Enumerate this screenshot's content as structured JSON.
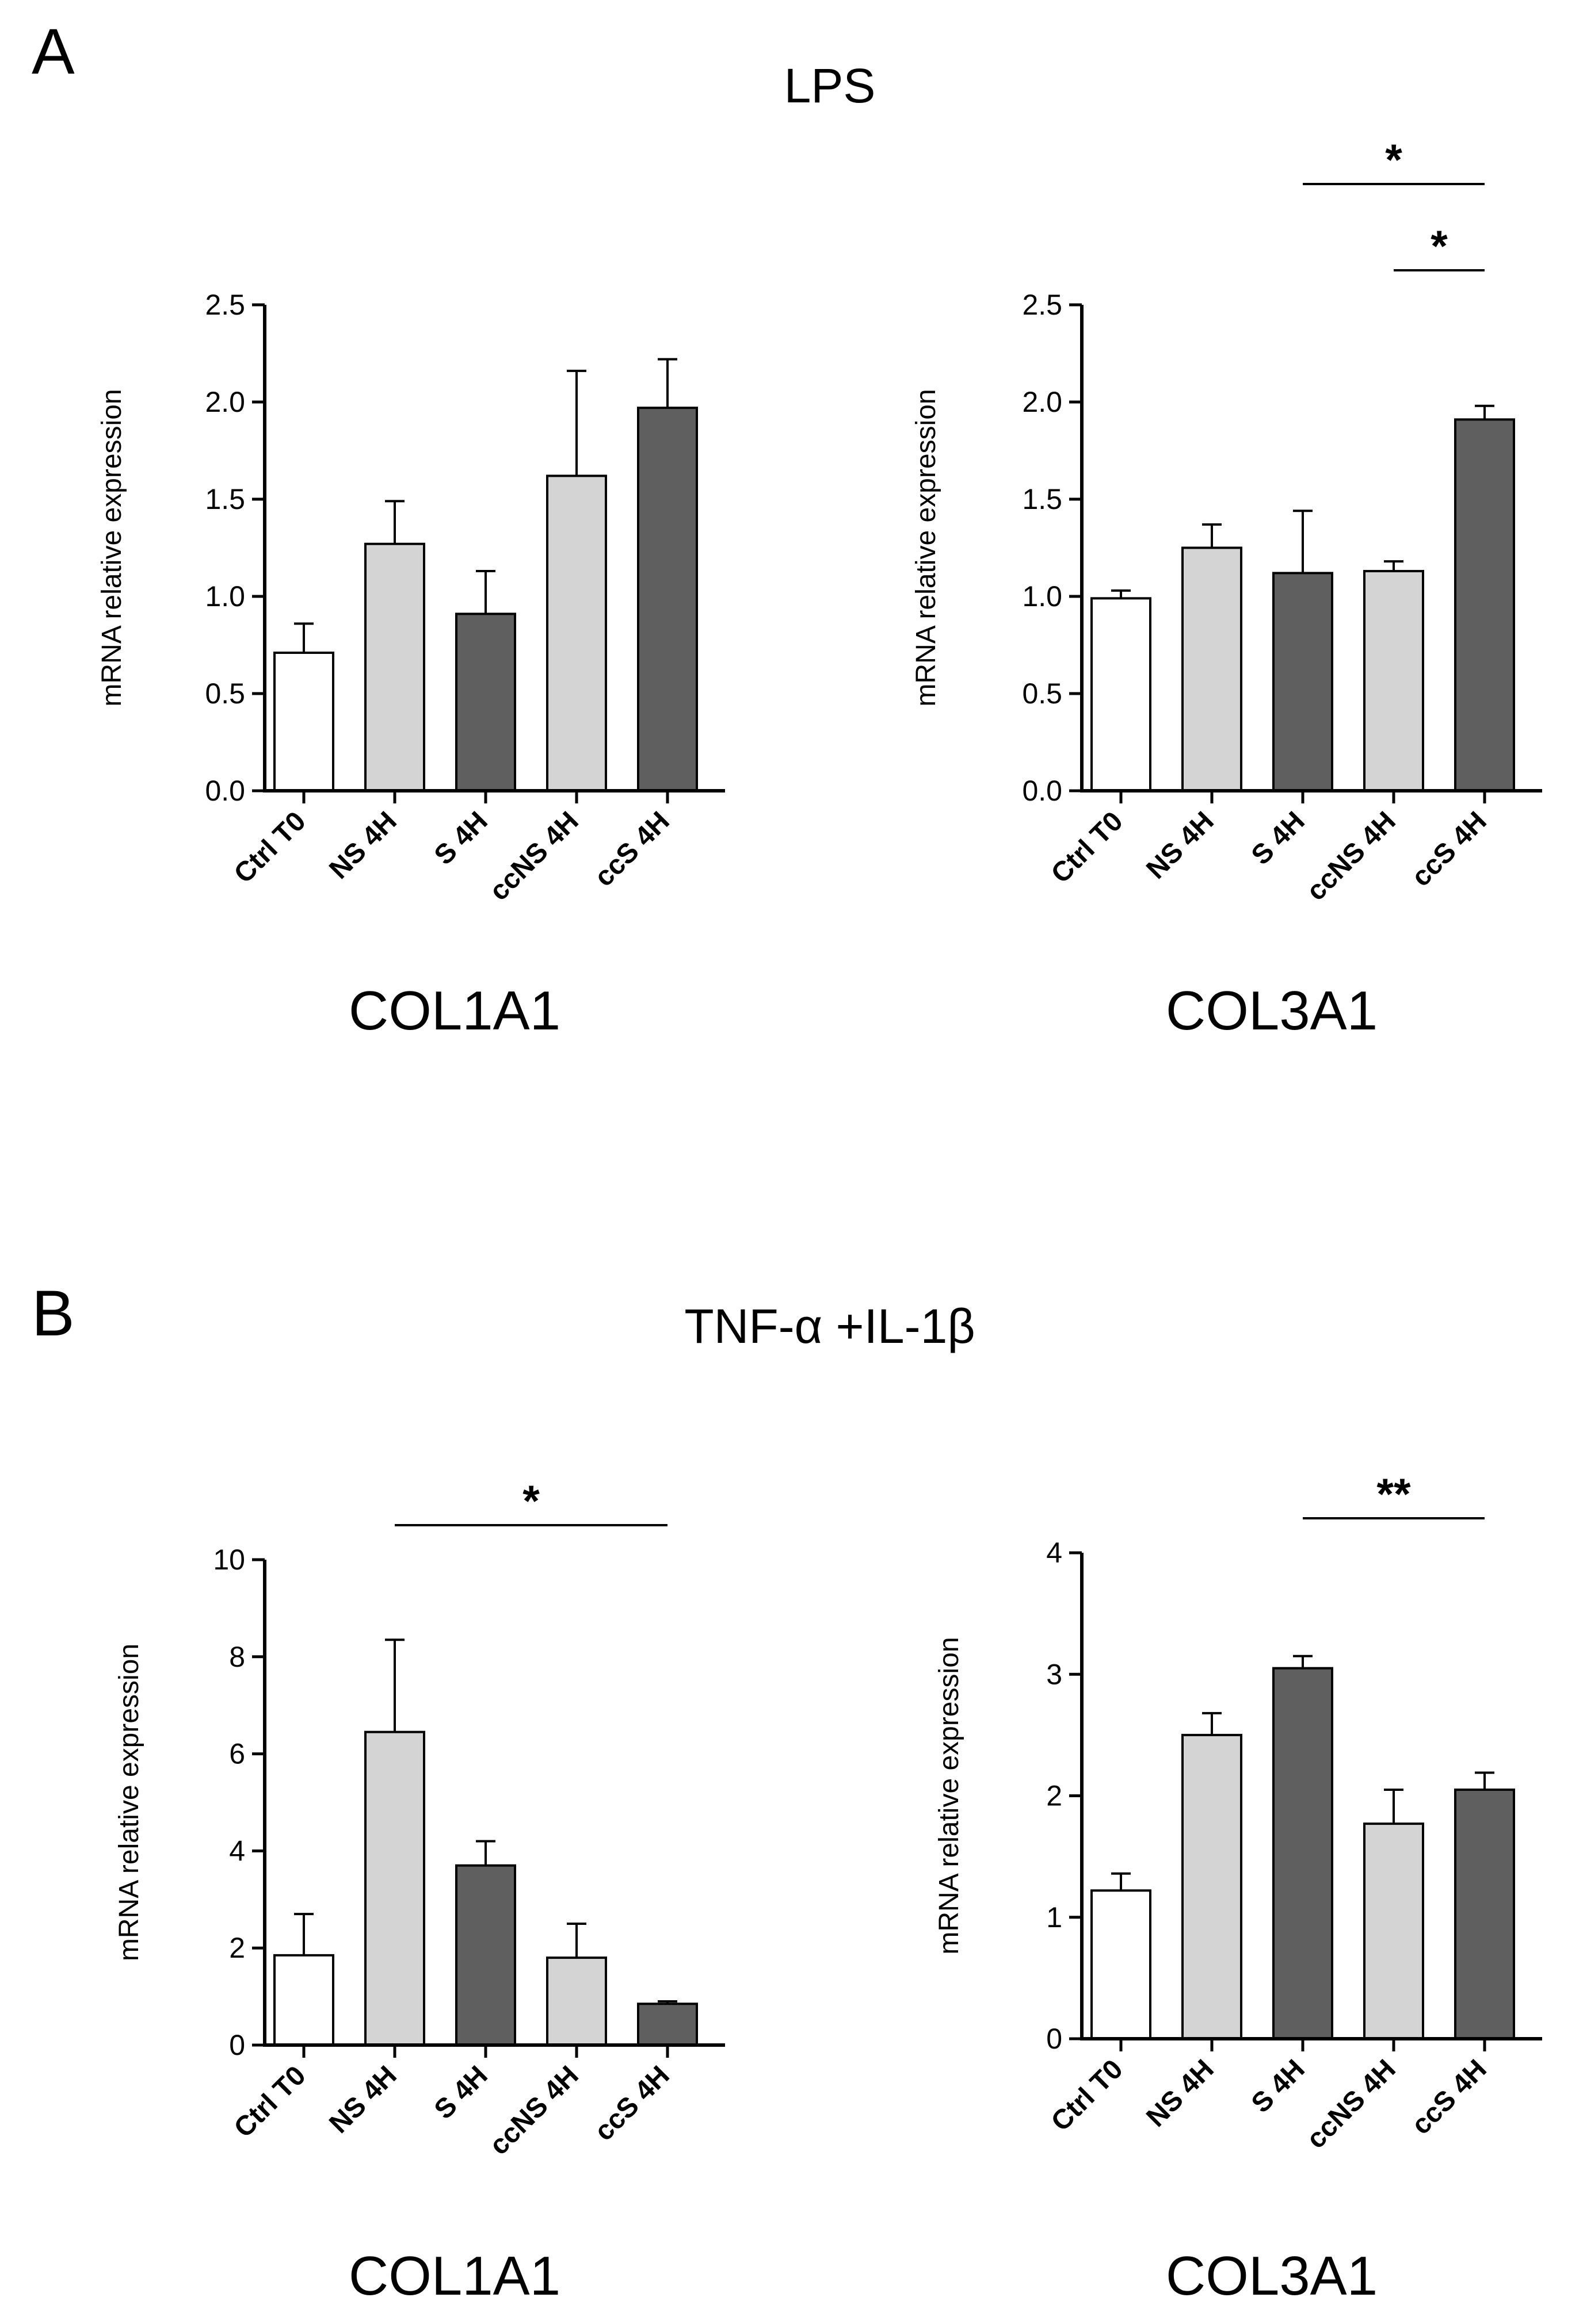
{
  "panels": [
    {
      "letter": "A",
      "title": "LPS"
    },
    {
      "letter": "B",
      "title": "TNF-α +IL-1β"
    }
  ],
  "colors": {
    "Ctrl T0": "#ffffff",
    "NS 4H": "#d4d4d4",
    "S 4H": "#5f5f5f",
    "ccNS 4H": "#d4d4d4",
    "ccS 4H": "#5f5f5f",
    "axis": "#000000"
  },
  "chart_data": [
    {
      "type": "bar",
      "panel": "A",
      "title": "COL1A1",
      "ylabel": "mRNA relative expression",
      "xlabel": "",
      "categories": [
        "Ctrl T0",
        "NS 4H",
        "S 4H",
        "ccNS 4H",
        "ccS 4H"
      ],
      "values": [
        0.71,
        1.27,
        0.91,
        1.62,
        1.97
      ],
      "errors": [
        0.15,
        0.22,
        0.22,
        0.54,
        0.25
      ],
      "ylim": [
        0,
        2.5
      ],
      "yticks": [
        0.0,
        0.5,
        1.0,
        1.5,
        2.0,
        2.5
      ],
      "ytick_labels": [
        "0.0",
        "0.5",
        "1.0",
        "1.5",
        "2.0",
        "2.5"
      ],
      "significance": []
    },
    {
      "type": "bar",
      "panel": "A",
      "title": "COL3A1",
      "ylabel": "mRNA relative expression",
      "xlabel": "",
      "categories": [
        "Ctrl T0",
        "NS 4H",
        "S 4H",
        "ccNS 4H",
        "ccS 4H"
      ],
      "values": [
        0.99,
        1.25,
        1.12,
        1.13,
        1.91
      ],
      "errors": [
        0.04,
        0.12,
        0.32,
        0.05,
        0.07
      ],
      "ylim": [
        0,
        2.5
      ],
      "yticks": [
        0.0,
        0.5,
        1.0,
        1.5,
        2.0,
        2.5
      ],
      "ytick_labels": [
        "0.0",
        "0.5",
        "1.0",
        "1.5",
        "2.0",
        "2.5"
      ],
      "significance": [
        {
          "from": 2,
          "to": 4,
          "label": "*",
          "level": 1
        },
        {
          "from": 3,
          "to": 4,
          "label": "*",
          "level": 0
        }
      ]
    },
    {
      "type": "bar",
      "panel": "B",
      "title": "COL1A1",
      "ylabel": "mRNA relative expression",
      "xlabel": "",
      "categories": [
        "Ctrl T0",
        "NS 4H",
        "S 4H",
        "ccNS 4H",
        "ccS 4H"
      ],
      "values": [
        1.85,
        6.45,
        3.7,
        1.8,
        0.85
      ],
      "errors": [
        0.85,
        1.9,
        0.5,
        0.7,
        0.05
      ],
      "ylim": [
        0,
        10
      ],
      "yticks": [
        0,
        2,
        4,
        6,
        8,
        10
      ],
      "ytick_labels": [
        "0",
        "2",
        "4",
        "6",
        "8",
        "10"
      ],
      "significance": [
        {
          "from": 1,
          "to": 4,
          "label": "*",
          "level": 0
        }
      ]
    },
    {
      "type": "bar",
      "panel": "B",
      "title": "COL3A1",
      "ylabel": "mRNA relative expression",
      "xlabel": "",
      "categories": [
        "Ctrl T0",
        "NS 4H",
        "S 4H",
        "ccNS 4H",
        "ccS 4H"
      ],
      "values": [
        1.22,
        2.5,
        3.05,
        1.77,
        2.05
      ],
      "errors": [
        0.14,
        0.18,
        0.1,
        0.28,
        0.14
      ],
      "ylim": [
        0,
        4
      ],
      "yticks": [
        0,
        1,
        2,
        3,
        4
      ],
      "ytick_labels": [
        "0",
        "1",
        "2",
        "3",
        "4"
      ],
      "significance": [
        {
          "from": 2,
          "to": 4,
          "label": "**",
          "level": 0
        }
      ]
    }
  ]
}
